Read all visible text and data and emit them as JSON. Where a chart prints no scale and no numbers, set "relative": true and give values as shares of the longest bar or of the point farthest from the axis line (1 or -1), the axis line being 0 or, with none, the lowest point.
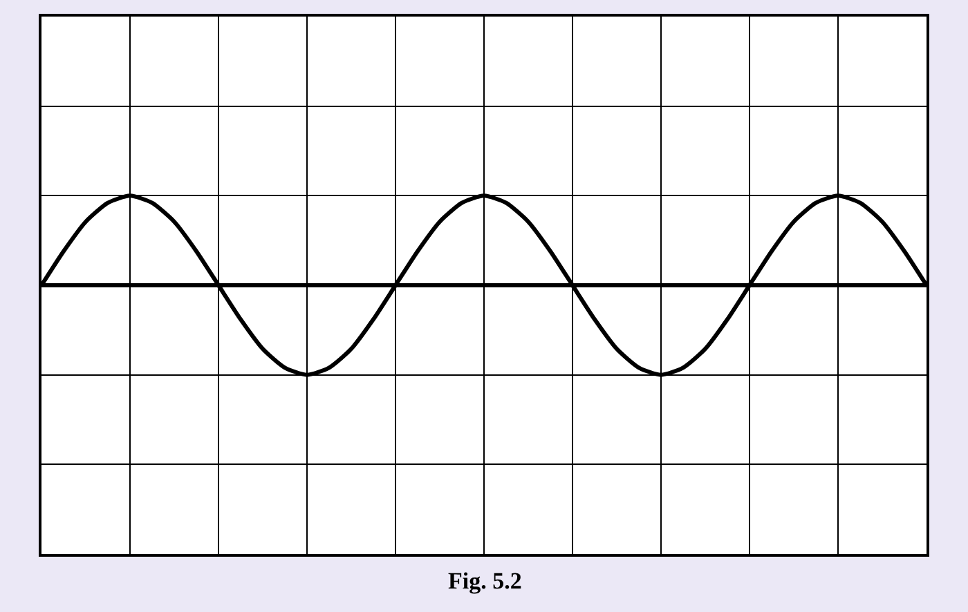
{
  "chart_data": {
    "type": "line",
    "relative": true,
    "grid": true,
    "marker": "none",
    "line_style": "solid",
    "categories": [
      null,
      null,
      null,
      null,
      null,
      null,
      null,
      null,
      null,
      null,
      null,
      null,
      null,
      null,
      null,
      null,
      null,
      null,
      null,
      null,
      null,
      null,
      null,
      null,
      null,
      null,
      null,
      null,
      null,
      null,
      null,
      null,
      null,
      null,
      null,
      null,
      null,
      null,
      null,
      null,
      null
    ],
    "series": [
      {
        "color": "#000000",
        "values": [
          0,
          0.38,
          0.71,
          0.92,
          1,
          0.92,
          0.71,
          0.38,
          0,
          -0.38,
          -0.71,
          -0.92,
          -1,
          -0.92,
          -0.71,
          -0.38,
          0,
          0.38,
          0.71,
          0.92,
          1,
          0.92,
          0.71,
          0.38,
          0,
          -0.38,
          -0.71,
          -0.92,
          -1,
          -0.92,
          -0.71,
          -0.38,
          0,
          0.38,
          0.71,
          0.92,
          1,
          0.92,
          0.71,
          0.38,
          0
        ]
      }
    ],
    "annotations": [
      "Fig. 5.2"
    ]
  }
}
